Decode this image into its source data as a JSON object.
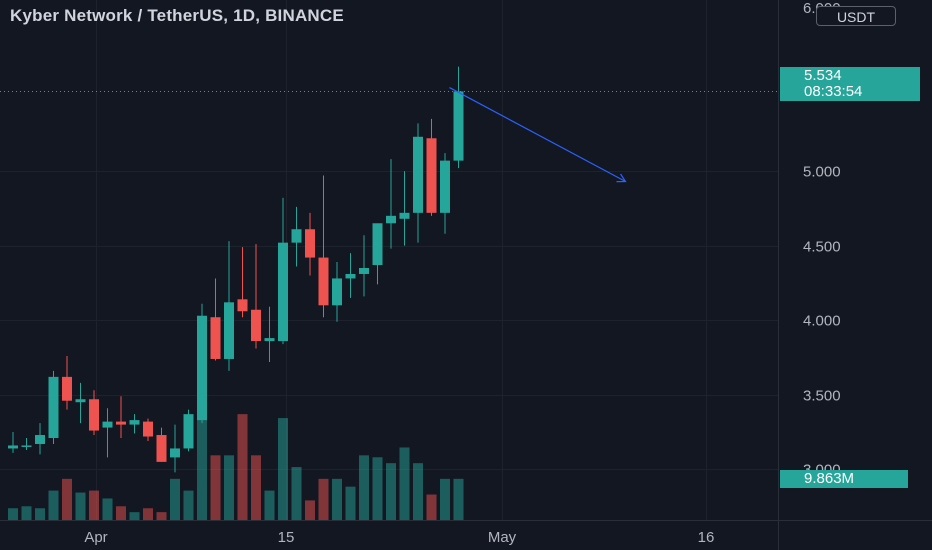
{
  "header": {
    "title": "Kyber Network / TetherUS, 1D, BINANCE",
    "currency": "USDT"
  },
  "last_price": {
    "value": "5.534",
    "countdown": "08:33:54"
  },
  "last_volume": "9.863M",
  "chart_data": {
    "type": "candlestick",
    "title": "Kyber Network / TetherUS, 1D, BINANCE",
    "y_ticks": [
      "3.000",
      "3.500",
      "4.000",
      "4.500",
      "5.000"
    ],
    "y_top_partial": "6.000",
    "ylim": [
      2.62,
      6.06
    ],
    "x_ticks": [
      "Apr",
      "15",
      "May",
      "16"
    ],
    "up_color": "#26a69a",
    "down_color": "#ef5350",
    "candles": [
      {
        "o": 3.14,
        "h": 3.25,
        "l": 3.11,
        "c": 3.16
      },
      {
        "o": 3.15,
        "h": 3.21,
        "l": 3.13,
        "c": 3.16
      },
      {
        "o": 3.17,
        "h": 3.31,
        "l": 3.1,
        "c": 3.23
      },
      {
        "o": 3.21,
        "h": 3.66,
        "l": 3.17,
        "c": 3.62
      },
      {
        "o": 3.62,
        "h": 3.76,
        "l": 3.4,
        "c": 3.46
      },
      {
        "o": 3.45,
        "h": 3.58,
        "l": 3.31,
        "c": 3.47
      },
      {
        "o": 3.47,
        "h": 3.53,
        "l": 3.23,
        "c": 3.26
      },
      {
        "o": 3.28,
        "h": 3.41,
        "l": 3.08,
        "c": 3.32
      },
      {
        "o": 3.32,
        "h": 3.49,
        "l": 3.21,
        "c": 3.3
      },
      {
        "o": 3.3,
        "h": 3.37,
        "l": 3.24,
        "c": 3.33
      },
      {
        "o": 3.32,
        "h": 3.34,
        "l": 3.19,
        "c": 3.22
      },
      {
        "o": 3.23,
        "h": 3.28,
        "l": 3.05,
        "c": 3.05
      },
      {
        "o": 3.08,
        "h": 3.3,
        "l": 2.98,
        "c": 3.14
      },
      {
        "o": 3.14,
        "h": 3.4,
        "l": 3.12,
        "c": 3.37
      },
      {
        "o": 3.33,
        "h": 4.11,
        "l": 3.31,
        "c": 4.03
      },
      {
        "o": 4.02,
        "h": 4.28,
        "l": 3.73,
        "c": 3.74
      },
      {
        "o": 3.74,
        "h": 4.53,
        "l": 3.66,
        "c": 4.12
      },
      {
        "o": 4.14,
        "h": 4.49,
        "l": 4.02,
        "c": 4.06
      },
      {
        "o": 4.07,
        "h": 4.51,
        "l": 3.81,
        "c": 3.86
      },
      {
        "o": 3.86,
        "h": 4.09,
        "l": 3.72,
        "c": 3.88
      },
      {
        "o": 3.86,
        "h": 4.82,
        "l": 3.84,
        "c": 4.52
      },
      {
        "o": 4.52,
        "h": 4.76,
        "l": 4.36,
        "c": 4.61
      },
      {
        "o": 4.61,
        "h": 4.72,
        "l": 4.3,
        "c": 4.42
      },
      {
        "o": 4.42,
        "h": 4.97,
        "l": 4.02,
        "c": 4.1
      },
      {
        "o": 4.1,
        "h": 4.39,
        "l": 3.99,
        "c": 4.28
      },
      {
        "o": 4.28,
        "h": 4.45,
        "l": 4.15,
        "c": 4.31
      },
      {
        "o": 4.31,
        "h": 4.57,
        "l": 4.16,
        "c": 4.35
      },
      {
        "o": 4.37,
        "h": 4.64,
        "l": 4.24,
        "c": 4.65
      },
      {
        "o": 4.65,
        "h": 5.08,
        "l": 4.48,
        "c": 4.7
      },
      {
        "o": 4.68,
        "h": 5.0,
        "l": 4.5,
        "c": 4.72
      },
      {
        "o": 4.72,
        "h": 5.32,
        "l": 4.52,
        "c": 5.23
      },
      {
        "o": 5.22,
        "h": 5.35,
        "l": 4.7,
        "c": 4.72
      },
      {
        "o": 4.72,
        "h": 5.12,
        "l": 4.58,
        "c": 5.07
      },
      {
        "o": 5.07,
        "h": 5.7,
        "l": 5.02,
        "c": 5.534
      }
    ],
    "volume_ylim": [
      0,
      1
    ],
    "volume": [
      0.12,
      0.14,
      0.12,
      0.3,
      0.42,
      0.28,
      0.3,
      0.22,
      0.14,
      0.08,
      0.12,
      0.08,
      0.42,
      0.3,
      1.12,
      0.66,
      0.66,
      1.08,
      0.66,
      0.3,
      1.04,
      0.54,
      0.2,
      0.42,
      0.42,
      0.34,
      0.66,
      0.64,
      0.58,
      0.74,
      0.58,
      0.26,
      0.42,
      0.42
    ],
    "volume_last": "9.863M",
    "trend_arrow": {
      "from": {
        "index": 33,
        "price": 5.56
      },
      "to": {
        "index": 45,
        "price": 4.93
      }
    }
  }
}
